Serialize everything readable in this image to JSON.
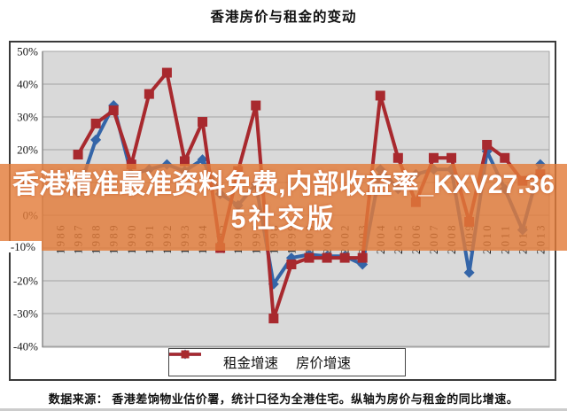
{
  "page": {
    "title": "香港房价与租金的变动",
    "source_note": "数据来源： 香港差饷物业估价署，统计口径为全港住宅。纵轴为房价与租金的同比增速。"
  },
  "watermark": {
    "line1": "香港精准最准资料免费,内部收益率_KXV27.36",
    "line2": "5社交版",
    "band_color": "rgba(227,124,59,0.82)",
    "text_color": "#ffffff"
  },
  "chart_data": {
    "type": "line",
    "title": "香港房价与租金的变动",
    "categories": [
      "1986",
      "1987",
      "1988",
      "1989",
      "1990",
      "1991",
      "1992",
      "1993",
      "1994",
      "1995",
      "1996",
      "1997",
      "1998",
      "1999",
      "2000",
      "2001",
      "2002",
      "2003",
      "2004",
      "2005",
      "2006",
      "2007",
      "2008",
      "2009",
      "2010",
      "2011",
      "2012",
      "2013"
    ],
    "series": [
      {
        "name": "租金增速",
        "color": "#3465a8",
        "marker": "diamond",
        "values": [
          null,
          7,
          23,
          33.5,
          12.5,
          14,
          15.5,
          13.5,
          17,
          6.5,
          3,
          9.5,
          -21,
          -13,
          -12,
          -12.5,
          -12.5,
          -15,
          14,
          8,
          12.5,
          14,
          14,
          -17.5,
          19.5,
          8,
          -4.5,
          15.5
        ]
      },
      {
        "name": "房价增速",
        "color": "#a8292e",
        "marker": "square",
        "values": [
          null,
          18.5,
          28,
          32,
          15.5,
          37,
          43.5,
          16.5,
          28.5,
          -10,
          13.5,
          33.5,
          -31.5,
          -15,
          -13,
          -13,
          -13,
          -13,
          36.5,
          17.5,
          4,
          17.5,
          17.5,
          -2,
          21.5,
          17.5,
          10.5,
          12.5
        ]
      }
    ],
    "yticks": [
      50,
      40,
      30,
      20,
      10,
      0,
      -10,
      -20,
      -30,
      -40
    ],
    "ylabel_ticks": [
      "50%",
      "40%",
      "30%",
      "20%",
      "10%",
      "0%",
      "-10%",
      "-20%",
      "-30%",
      "-40%"
    ],
    "ylim": [
      -40,
      50
    ],
    "grid": true,
    "legend_position": "bottom",
    "plot_bg": "#d9d9d9",
    "grid_color": "#a3a3a3",
    "axis_color": "#8a8a8a"
  }
}
